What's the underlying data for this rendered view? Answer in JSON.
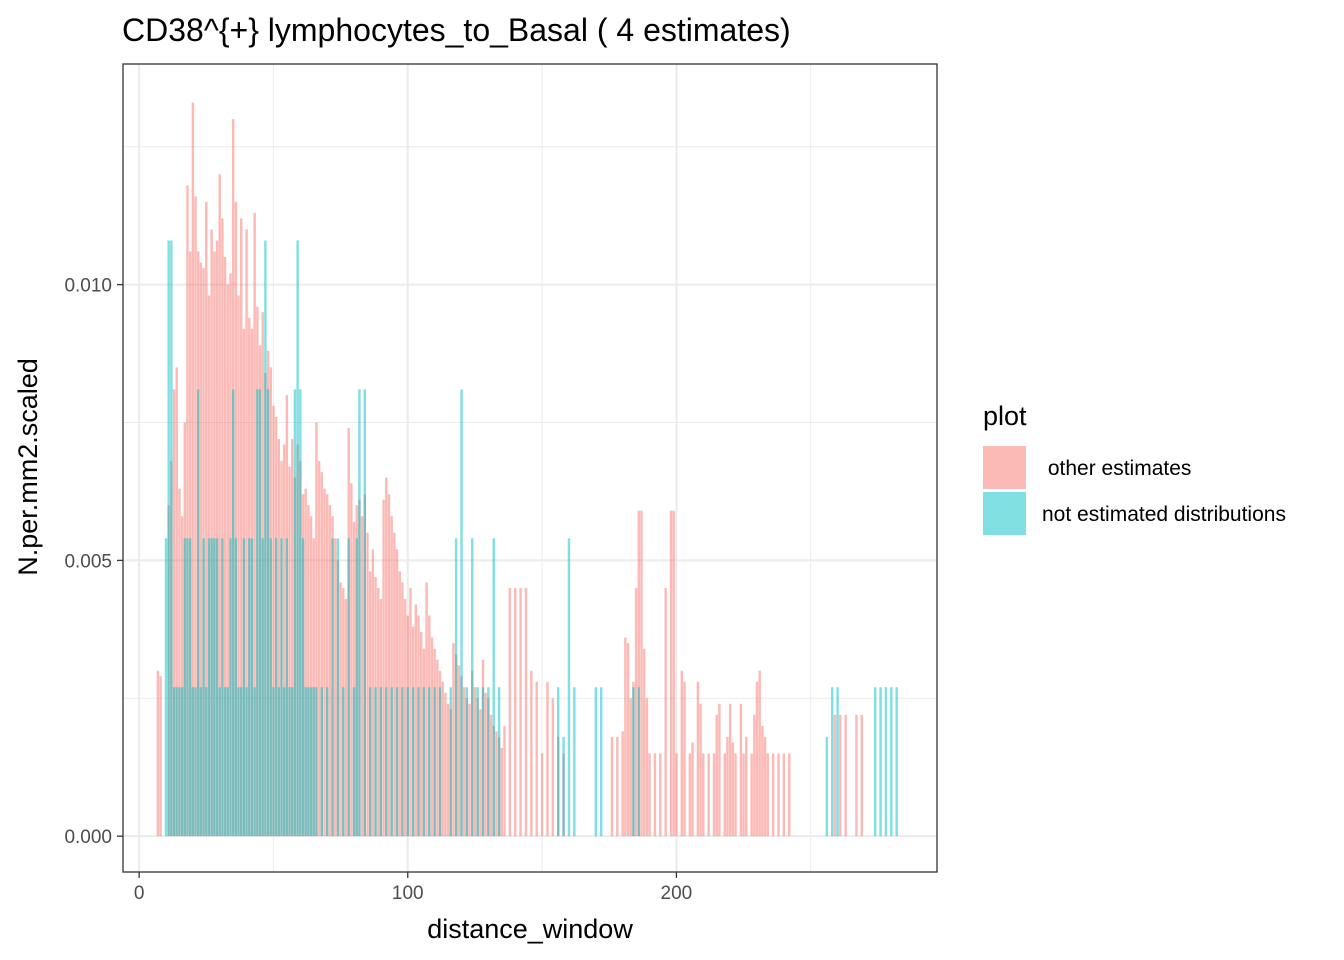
{
  "chart_data": {
    "type": "bar",
    "title": "CD38^{+} lymphocytes_to_Basal ( 4 estimates)",
    "xlabel": "distance_window",
    "ylabel": "N.per.mm2.scaled",
    "xlim": [
      -6,
      297
    ],
    "ylim": [
      -0.00065,
      0.014
    ],
    "x_ticks": [
      0,
      100,
      200
    ],
    "x_tick_labels": [
      "0",
      "100",
      "200"
    ],
    "y_ticks": [
      0.0,
      0.005,
      0.01
    ],
    "y_tick_labels": [
      "0.000",
      "0.005",
      "0.010"
    ],
    "grid": true,
    "legend": {
      "title": "plot",
      "position": "right",
      "entries": [
        {
          "label": " other estimates",
          "color": "#F8766D"
        },
        {
          "label": "not estimated distributions",
          "color": "#00BFC4"
        }
      ]
    },
    "series": [
      {
        "name": " other estimates",
        "color": "#F8766D",
        "opacity": 0.5,
        "points": [
          [
            7,
            0.003
          ],
          [
            8,
            0.0029
          ],
          [
            11,
            0.006
          ],
          [
            12,
            0.0068
          ],
          [
            13,
            0.0081
          ],
          [
            14,
            0.0085
          ],
          [
            15,
            0.0063
          ],
          [
            16,
            0.0058
          ],
          [
            17,
            0.0075
          ],
          [
            18,
            0.0118
          ],
          [
            19,
            0.0106
          ],
          [
            20,
            0.0133
          ],
          [
            21,
            0.0116
          ],
          [
            22,
            0.0106
          ],
          [
            23,
            0.0104
          ],
          [
            24,
            0.0103
          ],
          [
            25,
            0.0115
          ],
          [
            26,
            0.0098
          ],
          [
            27,
            0.011
          ],
          [
            28,
            0.0106
          ],
          [
            29,
            0.0108
          ],
          [
            30,
            0.012
          ],
          [
            31,
            0.0112
          ],
          [
            32,
            0.0105
          ],
          [
            33,
            0.01
          ],
          [
            34,
            0.0102
          ],
          [
            35,
            0.013
          ],
          [
            36,
            0.0115
          ],
          [
            37,
            0.0098
          ],
          [
            38,
            0.0112
          ],
          [
            39,
            0.0092
          ],
          [
            40,
            0.011
          ],
          [
            41,
            0.0094
          ],
          [
            42,
            0.0092
          ],
          [
            43,
            0.0113
          ],
          [
            44,
            0.0096
          ],
          [
            45,
            0.0089
          ],
          [
            46,
            0.0095
          ],
          [
            47,
            0.0084
          ],
          [
            48,
            0.0088
          ],
          [
            49,
            0.0085
          ],
          [
            50,
            0.0078
          ],
          [
            51,
            0.0076
          ],
          [
            52,
            0.0072
          ],
          [
            53,
            0.0068
          ],
          [
            54,
            0.0071
          ],
          [
            55,
            0.008
          ],
          [
            56,
            0.0067
          ],
          [
            57,
            0.0072
          ],
          [
            58,
            0.0065
          ],
          [
            59,
            0.0071
          ],
          [
            60,
            0.0068
          ],
          [
            61,
            0.0062
          ],
          [
            62,
            0.0063
          ],
          [
            63,
            0.006
          ],
          [
            64,
            0.0058
          ],
          [
            65,
            0.0054
          ],
          [
            66,
            0.0075
          ],
          [
            67,
            0.0068
          ],
          [
            68,
            0.0066
          ],
          [
            69,
            0.0063
          ],
          [
            70,
            0.0062
          ],
          [
            71,
            0.006
          ],
          [
            72,
            0.0058
          ],
          [
            73,
            0.0054
          ],
          [
            74,
            0.005
          ],
          [
            75,
            0.0046
          ],
          [
            76,
            0.0045
          ],
          [
            77,
            0.0043
          ],
          [
            78,
            0.0074
          ],
          [
            79,
            0.0064
          ],
          [
            80,
            0.0057
          ],
          [
            81,
            0.006
          ],
          [
            82,
            0.0061
          ],
          [
            83,
            0.0058
          ],
          [
            84,
            0.0062
          ],
          [
            85,
            0.0055
          ],
          [
            86,
            0.0048
          ],
          [
            87,
            0.0052
          ],
          [
            88,
            0.0047
          ],
          [
            89,
            0.0045
          ],
          [
            90,
            0.0043
          ],
          [
            91,
            0.0061
          ],
          [
            92,
            0.0065
          ],
          [
            93,
            0.0062
          ],
          [
            94,
            0.0058
          ],
          [
            95,
            0.0055
          ],
          [
            96,
            0.0052
          ],
          [
            97,
            0.0048
          ],
          [
            98,
            0.0046
          ],
          [
            99,
            0.0043
          ],
          [
            100,
            0.004
          ],
          [
            101,
            0.0045
          ],
          [
            102,
            0.0038
          ],
          [
            103,
            0.0042
          ],
          [
            104,
            0.004
          ],
          [
            105,
            0.0037
          ],
          [
            106,
            0.0034
          ],
          [
            107,
            0.0046
          ],
          [
            108,
            0.004
          ],
          [
            109,
            0.0036
          ],
          [
            110,
            0.0034
          ],
          [
            111,
            0.0032
          ],
          [
            112,
            0.003
          ],
          [
            113,
            0.0028
          ],
          [
            114,
            0.0026
          ],
          [
            115,
            0.0024
          ],
          [
            116,
            0.0023
          ],
          [
            117,
            0.0035
          ],
          [
            118,
            0.0033
          ],
          [
            119,
            0.0031
          ],
          [
            120,
            0.0029
          ],
          [
            121,
            0.0027
          ],
          [
            122,
            0.0025
          ],
          [
            123,
            0.0024
          ],
          [
            124,
            0.003
          ],
          [
            125,
            0.0027
          ],
          [
            126,
            0.0025
          ],
          [
            127,
            0.0023
          ],
          [
            128,
            0.0032
          ],
          [
            129,
            0.0026
          ],
          [
            130,
            0.0025
          ],
          [
            131,
            0.0022
          ],
          [
            132,
            0.002
          ],
          [
            133,
            0.0019
          ],
          [
            134,
            0.0018
          ],
          [
            135,
            0.0016
          ],
          [
            136,
            0.002
          ],
          [
            138,
            0.0045
          ],
          [
            140,
            0.0045
          ],
          [
            142,
            0.0045
          ],
          [
            144,
            0.0045
          ],
          [
            146,
            0.003
          ],
          [
            148,
            0.0028
          ],
          [
            150,
            0.0015
          ],
          [
            152,
            0.0028
          ],
          [
            154,
            0.0025
          ],
          [
            156,
            0.0018
          ],
          [
            158,
            0.0015
          ],
          [
            176,
            0.0018
          ],
          [
            178,
            0.0018
          ],
          [
            180,
            0.0019
          ],
          [
            181,
            0.0036
          ],
          [
            182,
            0.0035
          ],
          [
            183,
            0.0025
          ],
          [
            184,
            0.0028
          ],
          [
            185,
            0.0045
          ],
          [
            186,
            0.0059
          ],
          [
            187,
            0.0059
          ],
          [
            188,
            0.0034
          ],
          [
            189,
            0.0025
          ],
          [
            190,
            0.0015
          ],
          [
            192,
            0.0015
          ],
          [
            194,
            0.0015
          ],
          [
            196,
            0.0045
          ],
          [
            198,
            0.0059
          ],
          [
            199,
            0.0059
          ],
          [
            200,
            0.0015
          ],
          [
            202,
            0.003
          ],
          [
            203,
            0.0028
          ],
          [
            205,
            0.0015
          ],
          [
            206,
            0.0017
          ],
          [
            208,
            0.0028
          ],
          [
            209,
            0.0024
          ],
          [
            210,
            0.0015
          ],
          [
            212,
            0.0015
          ],
          [
            214,
            0.0015
          ],
          [
            215,
            0.0022
          ],
          [
            216,
            0.0024
          ],
          [
            218,
            0.0015
          ],
          [
            219,
            0.0018
          ],
          [
            220,
            0.0024
          ],
          [
            221,
            0.0017
          ],
          [
            222,
            0.0015
          ],
          [
            224,
            0.0024
          ],
          [
            225,
            0.0015
          ],
          [
            226,
            0.0018
          ],
          [
            228,
            0.0015
          ],
          [
            229,
            0.0022
          ],
          [
            230,
            0.0028
          ],
          [
            231,
            0.003
          ],
          [
            232,
            0.002
          ],
          [
            233,
            0.0018
          ],
          [
            234,
            0.0015
          ],
          [
            236,
            0.0015
          ],
          [
            238,
            0.0015
          ],
          [
            240,
            0.0015
          ],
          [
            242,
            0.0015
          ],
          [
            259,
            0.0022
          ],
          [
            261,
            0.0022
          ],
          [
            263,
            0.0022
          ],
          [
            267,
            0.0022
          ],
          [
            269,
            0.0022
          ]
        ]
      },
      {
        "name": "not estimated distributions",
        "color": "#00BFC4",
        "opacity": 0.5,
        "points": [
          [
            10,
            0.0054
          ],
          [
            11,
            0.0108
          ],
          [
            12,
            0.0108
          ],
          [
            13,
            0.0027
          ],
          [
            14,
            0.0027
          ],
          [
            15,
            0.0027
          ],
          [
            16,
            0.0027
          ],
          [
            17,
            0.0054
          ],
          [
            18,
            0.0054
          ],
          [
            19,
            0.0054
          ],
          [
            20,
            0.0027
          ],
          [
            21,
            0.0027
          ],
          [
            22,
            0.0081
          ],
          [
            23,
            0.0027
          ],
          [
            24,
            0.0054
          ],
          [
            25,
            0.0027
          ],
          [
            26,
            0.0054
          ],
          [
            27,
            0.0054
          ],
          [
            28,
            0.0054
          ],
          [
            29,
            0.0054
          ],
          [
            30,
            0.0027
          ],
          [
            31,
            0.0054
          ],
          [
            32,
            0.0027
          ],
          [
            33,
            0.0027
          ],
          [
            34,
            0.0054
          ],
          [
            35,
            0.0081
          ],
          [
            36,
            0.0054
          ],
          [
            37,
            0.0027
          ],
          [
            38,
            0.0027
          ],
          [
            39,
            0.0054
          ],
          [
            40,
            0.0027
          ],
          [
            41,
            0.0054
          ],
          [
            42,
            0.0054
          ],
          [
            43,
            0.0027
          ],
          [
            44,
            0.0081
          ],
          [
            45,
            0.0081
          ],
          [
            46,
            0.0054
          ],
          [
            47,
            0.0108
          ],
          [
            48,
            0.0081
          ],
          [
            49,
            0.0054
          ],
          [
            50,
            0.0027
          ],
          [
            51,
            0.0054
          ],
          [
            52,
            0.0027
          ],
          [
            53,
            0.0054
          ],
          [
            54,
            0.0027
          ],
          [
            55,
            0.0054
          ],
          [
            56,
            0.0027
          ],
          [
            57,
            0.0027
          ],
          [
            58,
            0.0081
          ],
          [
            59,
            0.0108
          ],
          [
            60,
            0.0081
          ],
          [
            61,
            0.0054
          ],
          [
            62,
            0.0027
          ],
          [
            63,
            0.0027
          ],
          [
            64,
            0.0027
          ],
          [
            65,
            0.0027
          ],
          [
            66,
            0.0027
          ],
          [
            68,
            0.0027
          ],
          [
            70,
            0.0027
          ],
          [
            72,
            0.0054
          ],
          [
            74,
            0.0054
          ],
          [
            76,
            0.0027
          ],
          [
            78,
            0.0054
          ],
          [
            80,
            0.0027
          ],
          [
            81,
            0.0054
          ],
          [
            82,
            0.0081
          ],
          [
            84,
            0.0081
          ],
          [
            86,
            0.0027
          ],
          [
            88,
            0.0027
          ],
          [
            90,
            0.0027
          ],
          [
            92,
            0.0027
          ],
          [
            94,
            0.0027
          ],
          [
            96,
            0.0027
          ],
          [
            98,
            0.0027
          ],
          [
            100,
            0.0027
          ],
          [
            102,
            0.0027
          ],
          [
            104,
            0.0027
          ],
          [
            106,
            0.0027
          ],
          [
            108,
            0.0027
          ],
          [
            110,
            0.0027
          ],
          [
            112,
            0.0027
          ],
          [
            116,
            0.0027
          ],
          [
            118,
            0.0054
          ],
          [
            120,
            0.0081
          ],
          [
            122,
            0.0027
          ],
          [
            124,
            0.0054
          ],
          [
            126,
            0.0027
          ],
          [
            128,
            0.0027
          ],
          [
            130,
            0.0027
          ],
          [
            132,
            0.0054
          ],
          [
            134,
            0.0027
          ],
          [
            156,
            0.0027
          ],
          [
            158,
            0.0018
          ],
          [
            160,
            0.0054
          ],
          [
            162,
            0.0027
          ],
          [
            170,
            0.0027
          ],
          [
            172,
            0.0027
          ],
          [
            184,
            0.0027
          ],
          [
            186,
            0.0027
          ],
          [
            256,
            0.0018
          ],
          [
            258,
            0.0027
          ],
          [
            260,
            0.0027
          ],
          [
            274,
            0.0027
          ],
          [
            276,
            0.0027
          ],
          [
            278,
            0.0027
          ],
          [
            280,
            0.0027
          ],
          [
            282,
            0.0027
          ]
        ]
      }
    ]
  }
}
